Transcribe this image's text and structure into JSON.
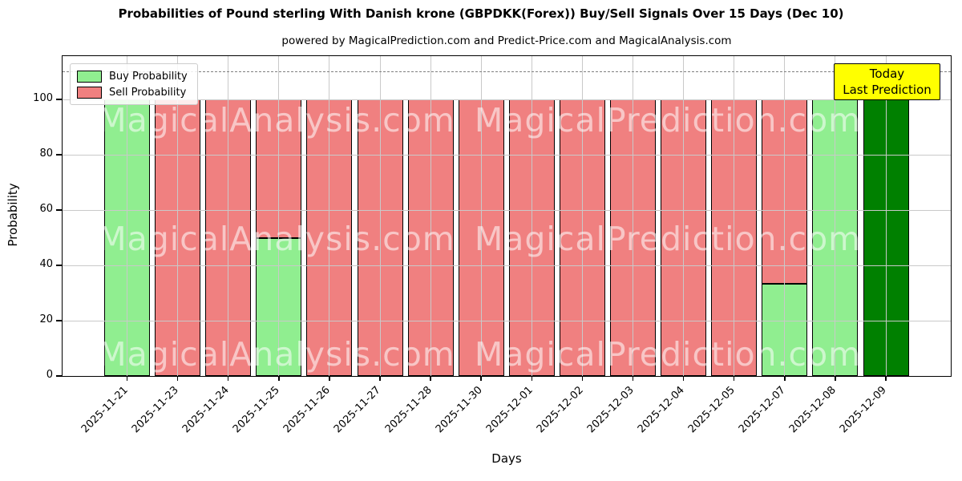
{
  "chart_data": {
    "type": "bar",
    "stacked": true,
    "title": "Probabilities of Pound sterling With Danish krone (GBPDKK(Forex)) Buy/Sell Signals Over 15 Days (Dec 10)",
    "subtitle": "powered by MagicalPrediction.com and Predict-Price.com and MagicalAnalysis.com",
    "xlabel": "Days",
    "ylabel": "Probability",
    "categories": [
      "2025-11-21",
      "2025-11-23",
      "2025-11-24",
      "2025-11-25",
      "2025-11-26",
      "2025-11-27",
      "2025-11-28",
      "2025-11-30",
      "2025-12-01",
      "2025-12-02",
      "2025-12-03",
      "2025-12-04",
      "2025-12-05",
      "2025-12-07",
      "2025-12-08",
      "2025-12-09"
    ],
    "series": [
      {
        "name": "Buy Probability",
        "color": "#90EE90",
        "values": [
          100,
          0,
          0,
          50,
          0,
          0,
          0,
          0,
          0,
          0,
          0,
          0,
          0,
          33.33,
          100,
          100
        ]
      },
      {
        "name": "Sell Probability",
        "color": "#F08080",
        "values": [
          0,
          100,
          100,
          50,
          100,
          100,
          100,
          100,
          100,
          100,
          100,
          100,
          100,
          66.67,
          0,
          0
        ]
      }
    ],
    "today_bar": {
      "category": "2025-12-09",
      "index": 15,
      "color": "#008000",
      "label_lines": [
        "Today",
        "Last Prediction"
      ],
      "label_bg": "#FFFF00"
    },
    "yticks": [
      0,
      20,
      40,
      60,
      80,
      100
    ],
    "ylim": [
      0,
      115.7
    ],
    "dashed_line_y": 110,
    "grid": true,
    "legend_position": "upper left",
    "watermarks": [
      "MagicalAnalysis.com",
      "MagicalPrediction.com"
    ],
    "colors": {
      "grid": "#c9c9c9",
      "dashed_line": "#7f7f7f",
      "bar_edge": "#000000",
      "annotation_bg": "#FFFF00"
    }
  }
}
